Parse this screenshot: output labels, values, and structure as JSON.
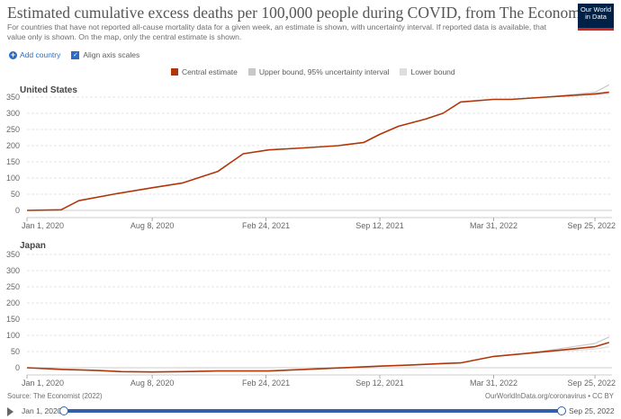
{
  "header": {
    "title": "Estimated cumulative excess deaths per 100,000 people during COVID, from The Economist",
    "subtitle": "For countries that have not reported all-cause mortality data for a given week, an estimate is shown, with uncertainty interval. If reported data is available, that value only is shown. On the map, only the central estimate is shown.",
    "logo": "Our World in Data"
  },
  "controls": {
    "add_country": "Add country",
    "align_axis": "Align axis scales"
  },
  "colors": {
    "central": "#b13507",
    "upper": "#c8c8c8",
    "lower": "#dddddd",
    "accent": "#3360a9"
  },
  "legend": [
    "Central estimate",
    "Upper bound, 95% uncertainty interval",
    "Lower bound"
  ],
  "chart_data": [
    {
      "type": "line",
      "title": "United States",
      "x": [
        "2020-01-01",
        "2020-03-01",
        "2020-04-01",
        "2020-06-01",
        "2020-08-08",
        "2020-10-01",
        "2020-12-01",
        "2021-01-15",
        "2021-03-01",
        "2021-05-01",
        "2021-07-01",
        "2021-08-15",
        "2021-09-12",
        "2021-10-15",
        "2021-12-01",
        "2022-01-01",
        "2022-02-01",
        "2022-03-31",
        "2022-05-01",
        "2022-07-01",
        "2022-09-25",
        "2022-10-20"
      ],
      "series": [
        {
          "name": "Central estimate",
          "values": [
            0,
            2,
            30,
            50,
            70,
            85,
            120,
            175,
            187,
            193,
            200,
            210,
            235,
            260,
            282,
            300,
            335,
            343,
            343,
            350,
            360,
            365
          ]
        },
        {
          "name": "Upper bound, 95% uncertainty interval",
          "values": [
            null,
            null,
            null,
            null,
            null,
            null,
            null,
            null,
            null,
            null,
            null,
            null,
            null,
            null,
            null,
            null,
            null,
            null,
            null,
            350,
            365,
            388
          ]
        },
        {
          "name": "Lower bound",
          "values": [
            null,
            null,
            null,
            null,
            null,
            null,
            null,
            null,
            null,
            null,
            null,
            null,
            null,
            null,
            null,
            null,
            null,
            null,
            null,
            350,
            357,
            360
          ]
        }
      ],
      "xticks": [
        "Jan 1, 2020",
        "Aug 8, 2020",
        "Feb 24, 2021",
        "Sep 12, 2021",
        "Mar 31, 2022",
        "Sep 25, 2022"
      ],
      "yticks": [
        0,
        50,
        100,
        150,
        200,
        250,
        300,
        350
      ],
      "ylim": [
        0,
        380
      ]
    },
    {
      "type": "line",
      "title": "Japan",
      "x": [
        "2020-01-01",
        "2020-03-01",
        "2020-05-01",
        "2020-06-15",
        "2020-08-08",
        "2020-10-01",
        "2020-12-01",
        "2021-03-01",
        "2021-06-01",
        "2021-09-12",
        "2021-11-01",
        "2022-01-01",
        "2022-02-01",
        "2022-03-31",
        "2022-06-01",
        "2022-09-25",
        "2022-10-20"
      ],
      "series": [
        {
          "name": "Central estimate",
          "values": [
            0,
            -5,
            -8,
            -12,
            -13,
            -12,
            -10,
            -10,
            -3,
            5,
            8,
            13,
            15,
            35,
            45,
            65,
            78
          ]
        },
        {
          "name": "Upper bound, 95% uncertainty interval",
          "values": [
            null,
            null,
            null,
            null,
            null,
            null,
            null,
            null,
            null,
            null,
            null,
            null,
            null,
            null,
            45,
            75,
            95
          ]
        },
        {
          "name": "Lower bound",
          "values": [
            null,
            null,
            null,
            null,
            null,
            null,
            null,
            null,
            null,
            null,
            null,
            null,
            null,
            null,
            45,
            58,
            65
          ]
        }
      ],
      "xticks": [
        "Jan 1, 2020",
        "Aug 8, 2020",
        "Feb 24, 2021",
        "Sep 12, 2021",
        "Mar 31, 2022",
        "Sep 25, 2022"
      ],
      "yticks": [
        0,
        50,
        100,
        150,
        200,
        250,
        300,
        350
      ],
      "ylim": [
        -15,
        380
      ]
    }
  ],
  "footer": {
    "source": "Source: The Economist (2022)",
    "url": "OurWorldInData.org/coronavirus • CC BY"
  },
  "timeline": {
    "start": "Jan 1, 2020",
    "end": "Sep 25, 2022"
  }
}
